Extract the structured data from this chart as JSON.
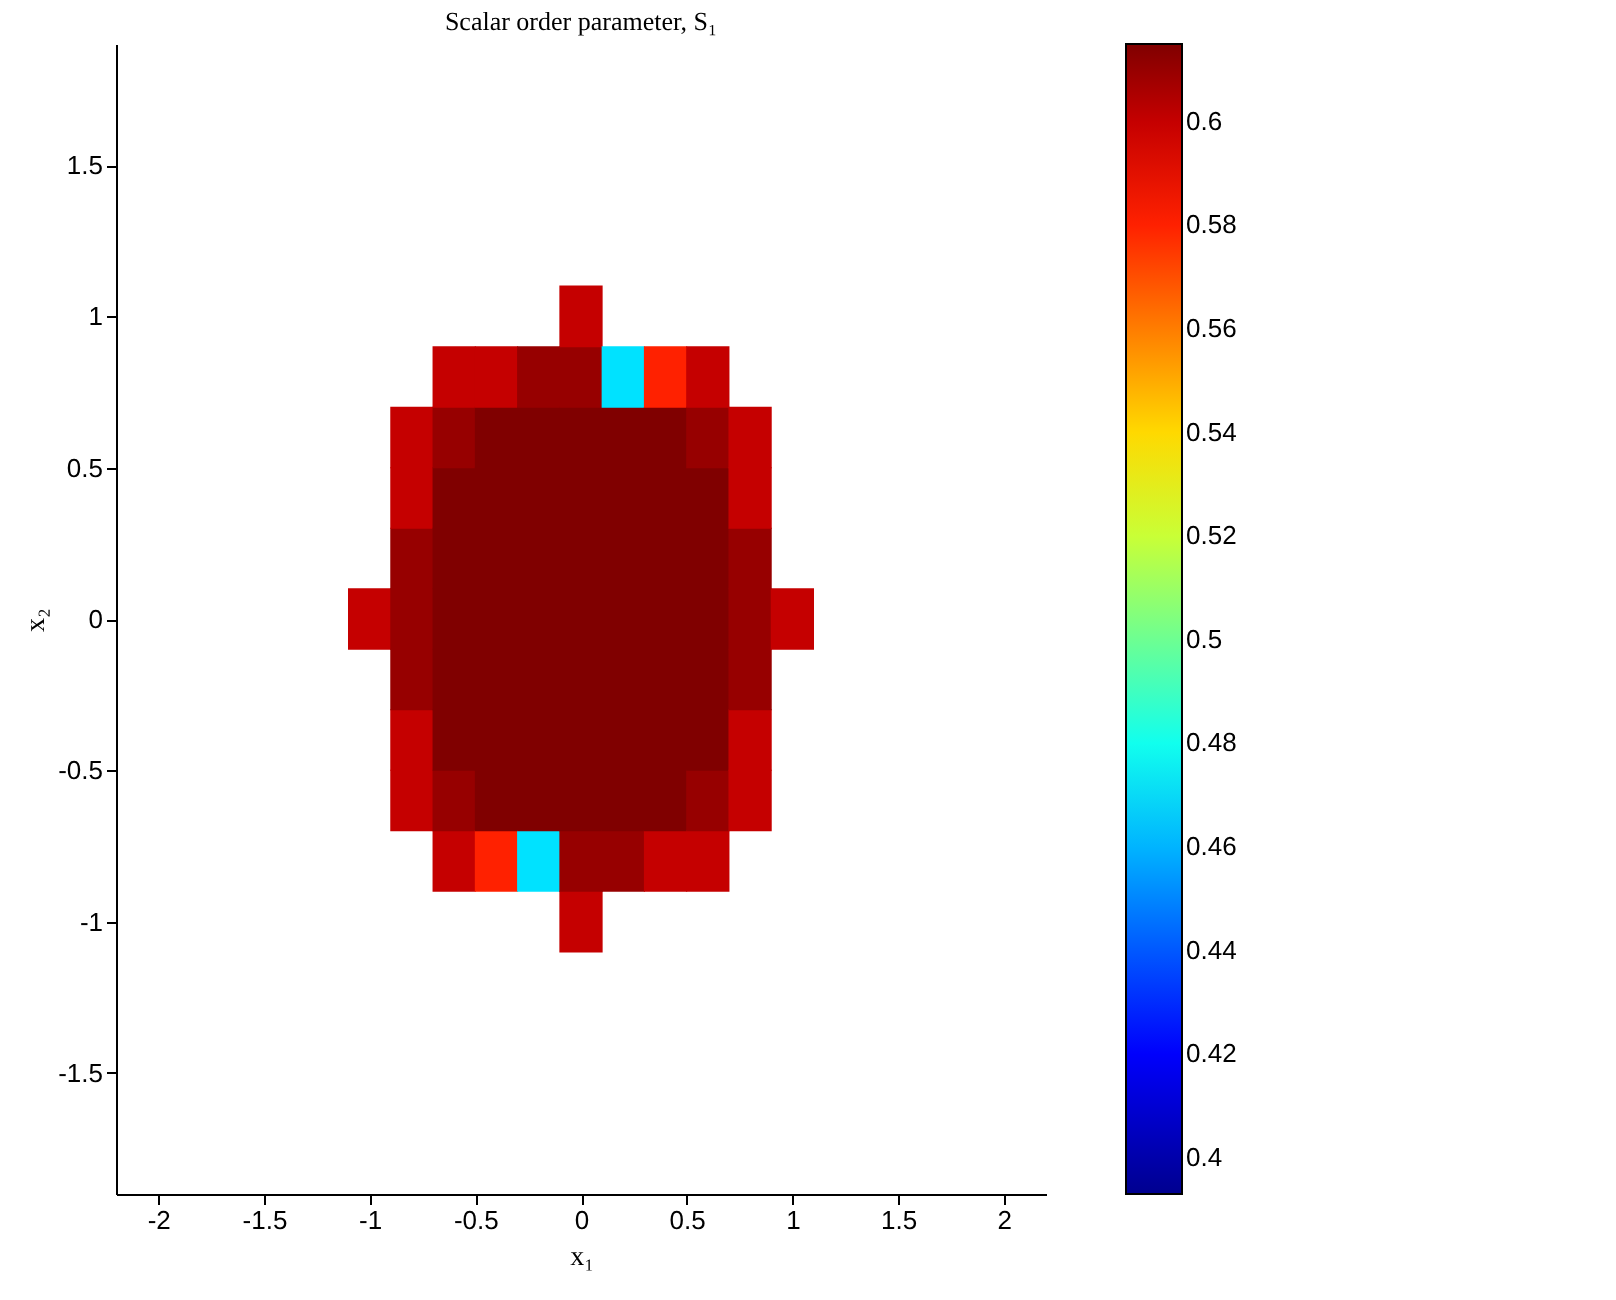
{
  "chart_data": {
    "type": "scatter",
    "title": "Scalar order parameter, S₁",
    "xlabel": "x₁",
    "ylabel": "x₂",
    "marker": "square",
    "x": [
      -1,
      -0.8,
      -0.8,
      -0.8,
      -0.8,
      -0.8,
      -0.8,
      -0.8,
      -0.6,
      -0.6,
      -0.6,
      -0.6,
      -0.6,
      -0.6,
      -0.6,
      -0.6,
      -0.6,
      -0.4,
      -0.4,
      -0.4,
      -0.4,
      -0.4,
      -0.4,
      -0.4,
      -0.4,
      -0.4,
      -0.2,
      -0.2,
      -0.2,
      -0.2,
      -0.2,
      -0.2,
      -0.2,
      -0.2,
      -0.2,
      0,
      0,
      0,
      0,
      0,
      0,
      0,
      0,
      0,
      0,
      0,
      0.2,
      0.2,
      0.2,
      0.2,
      0.2,
      0.2,
      0.2,
      0.2,
      0.2,
      0.4,
      0.4,
      0.4,
      0.4,
      0.4,
      0.4,
      0.4,
      0.4,
      0.4,
      0.6,
      0.6,
      0.6,
      0.6,
      0.6,
      0.6,
      0.6,
      0.6,
      0.6,
      0.8,
      0.8,
      0.8,
      0.8,
      0.8,
      0.8,
      0.8,
      1
    ],
    "values": [
      0,
      -0.6,
      -0.4,
      -0.2,
      0,
      0.2,
      0.4,
      0.6,
      -0.8,
      -0.6,
      -0.4,
      -0.2,
      0,
      0.2,
      0.4,
      0.6,
      0.8,
      -0.8,
      -0.6,
      -0.4,
      -0.2,
      0,
      0.2,
      0.4,
      0.6,
      0.8,
      -0.8,
      -0.6,
      -0.4,
      -0.2,
      0,
      0.2,
      0.4,
      0.6,
      0.8,
      -1,
      -0.8,
      -0.6,
      -0.4,
      -0.2,
      0,
      0.2,
      0.4,
      0.6,
      0.8,
      1,
      -0.8,
      -0.6,
      -0.4,
      -0.2,
      0,
      0.2,
      0.4,
      0.6,
      0.8,
      -0.8,
      -0.6,
      -0.4,
      -0.2,
      0,
      0.2,
      0.4,
      0.6,
      0.8,
      -0.8,
      -0.6,
      -0.4,
      -0.2,
      0,
      0.2,
      0.4,
      0.6,
      0.8,
      -0.6,
      -0.4,
      -0.2,
      0,
      0.2,
      0.4,
      0.6,
      0
    ],
    "cvalues": [
      0.6,
      0.6,
      0.6,
      0.61,
      0.61,
      0.61,
      0.6,
      0.6,
      0.6,
      0.61,
      0.615,
      0.615,
      0.615,
      0.615,
      0.615,
      0.61,
      0.6,
      0.58,
      0.615,
      0.615,
      0.615,
      0.615,
      0.615,
      0.615,
      0.615,
      0.6,
      0.47,
      0.615,
      0.615,
      0.615,
      0.615,
      0.615,
      0.615,
      0.615,
      0.61,
      0.6,
      0.61,
      0.615,
      0.615,
      0.615,
      0.615,
      0.615,
      0.615,
      0.615,
      0.61,
      0.6,
      0.61,
      0.615,
      0.615,
      0.615,
      0.615,
      0.615,
      0.615,
      0.615,
      0.47,
      0.6,
      0.615,
      0.615,
      0.615,
      0.615,
      0.615,
      0.615,
      0.615,
      0.58,
      0.6,
      0.61,
      0.615,
      0.615,
      0.615,
      0.615,
      0.615,
      0.61,
      0.6,
      0.6,
      0.6,
      0.61,
      0.61,
      0.61,
      0.6,
      0.6,
      0.6
    ],
    "clim": [
      0.393,
      0.615
    ],
    "cticks": [
      0.4,
      0.42,
      0.44,
      0.46,
      0.48,
      0.5,
      0.52,
      0.54,
      0.56,
      0.58,
      0.6
    ],
    "xlim": [
      -2.2,
      2.2
    ],
    "xticks": [
      -2,
      -1.5,
      -1,
      -0.5,
      0,
      0.5,
      1,
      1.5,
      2
    ],
    "ylim": [
      -1.9,
      1.9
    ],
    "yticks": [
      -1.5,
      -1,
      -0.5,
      0,
      0.5,
      1,
      1.5
    ]
  }
}
